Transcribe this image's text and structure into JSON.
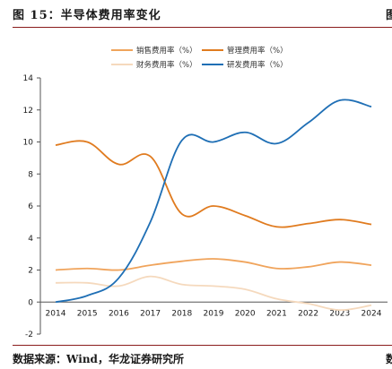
{
  "header": {
    "title": "图 15：半导体费用率变化",
    "right_edge_glyph": "图"
  },
  "footer": {
    "source": "数据来源：Wind，华龙证券研究所",
    "right_edge_glyph": "数"
  },
  "chart_data": {
    "type": "line",
    "title": "",
    "xlabel": "",
    "ylabel": "",
    "x": [
      "2014",
      "2015",
      "2016",
      "2017",
      "2018",
      "2019",
      "2020",
      "2021",
      "2022",
      "2023",
      "2024"
    ],
    "ylim": [
      -2,
      14
    ],
    "yticks": [
      -2,
      0,
      2,
      4,
      6,
      8,
      10,
      12,
      14
    ],
    "grid": false,
    "legend_position": "top-center",
    "series": [
      {
        "name": "销售费用率（%）",
        "color": "#f0a45c",
        "values": [
          2.0,
          2.1,
          2.0,
          2.3,
          2.55,
          2.7,
          2.5,
          2.1,
          2.2,
          2.5,
          2.3
        ]
      },
      {
        "name": "管理费用率（%）",
        "color": "#e07b1f",
        "values": [
          9.8,
          10.0,
          8.6,
          9.1,
          5.5,
          6.0,
          5.4,
          4.7,
          4.9,
          5.15,
          4.85
        ]
      },
      {
        "name": "财务费用率（%）",
        "color": "#f5d9bd",
        "values": [
          1.2,
          1.2,
          1.0,
          1.6,
          1.1,
          1.0,
          0.8,
          0.2,
          -0.1,
          -0.5,
          -0.2
        ]
      },
      {
        "name": "研发费用率（%）",
        "color": "#1f6fb5",
        "values": [
          0.0,
          0.4,
          1.5,
          5.0,
          10.1,
          10.0,
          10.6,
          9.9,
          11.2,
          12.6,
          12.2
        ]
      }
    ]
  }
}
